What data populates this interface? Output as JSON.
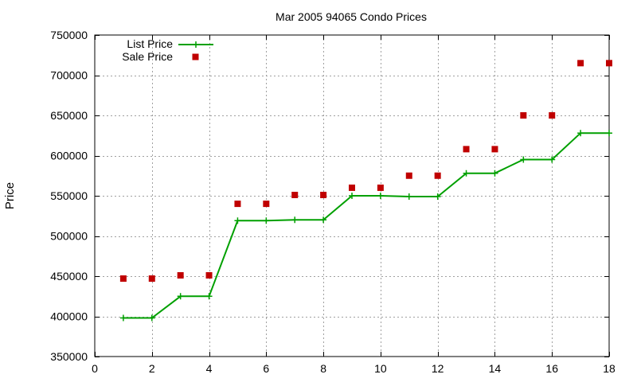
{
  "chart_data": {
    "type": "line",
    "title": "Mar 2005 94065 Condo Prices",
    "xlabel": "",
    "ylabel": "Price",
    "xlim": [
      0,
      18
    ],
    "ylim": [
      350000,
      750000
    ],
    "xticks": [
      0,
      2,
      4,
      6,
      8,
      10,
      12,
      14,
      16,
      18
    ],
    "yticks": [
      350000,
      400000,
      450000,
      500000,
      550000,
      600000,
      650000,
      700000,
      750000
    ],
    "grid": true,
    "legend_position": "top-left",
    "series": [
      {
        "name": "List Price",
        "style": "line+plus-markers",
        "color": "#00a000",
        "x": [
          1,
          2,
          3,
          4,
          5,
          6,
          7,
          8,
          9,
          10,
          11,
          12,
          13,
          14,
          15,
          16,
          17,
          18
        ],
        "y": [
          398000,
          398000,
          425000,
          425000,
          519000,
          519000,
          520000,
          520000,
          550000,
          550000,
          549000,
          549000,
          578000,
          578000,
          595000,
          595000,
          628000,
          628000
        ]
      },
      {
        "name": "Sale Price",
        "style": "square-points",
        "color": "#c00000",
        "x": [
          1,
          2,
          3,
          4,
          5,
          6,
          7,
          8,
          9,
          10,
          11,
          12,
          13,
          14,
          15,
          16,
          17,
          18
        ],
        "y": [
          447000,
          447000,
          451000,
          451000,
          540000,
          540000,
          551000,
          551000,
          560000,
          560000,
          575000,
          575000,
          608000,
          608000,
          650000,
          650000,
          715000,
          715000
        ]
      }
    ]
  }
}
